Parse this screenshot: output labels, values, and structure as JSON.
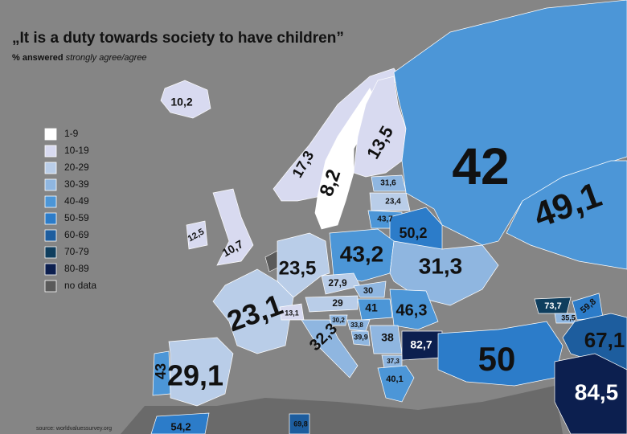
{
  "header": {
    "title": "„It is a duty towards society to have children”",
    "subtitle_prefix": "% answered",
    "subtitle_emphasis": "strongly agree/agree"
  },
  "legend": [
    {
      "label": "1-9",
      "color": "#ffffff"
    },
    {
      "label": "10-19",
      "color": "#d8daf0"
    },
    {
      "label": "20-29",
      "color": "#b9cde8"
    },
    {
      "label": "30-39",
      "color": "#8fb6e0"
    },
    {
      "label": "40-49",
      "color": "#4c96d7"
    },
    {
      "label": "50-59",
      "color": "#2c7cc9"
    },
    {
      "label": "60-69",
      "color": "#1d5d9e"
    },
    {
      "label": "70-79",
      "color": "#0f3e5e"
    },
    {
      "label": "80-89",
      "color": "#0c1f4f"
    },
    {
      "label": "no data",
      "color": "#5a5a5a"
    }
  ],
  "regions": [
    {
      "label": "10,2",
      "color": "#d8daf0"
    },
    {
      "label": "17,3",
      "color": "#d8daf0"
    },
    {
      "label": "8,2",
      "color": "#ffffff"
    },
    {
      "label": "13,5",
      "color": "#d8daf0"
    },
    {
      "label": "42",
      "color": "#4c96d7"
    },
    {
      "label": "49,1",
      "color": "#4c96d7"
    },
    {
      "label": "31,6",
      "color": "#8fb6e0"
    },
    {
      "label": "23,4",
      "color": "#b9cde8"
    },
    {
      "label": "43,7",
      "color": "#4c96d7"
    },
    {
      "label": "50,2",
      "color": "#2c7cc9"
    },
    {
      "label": "12,5",
      "color": "#d8daf0"
    },
    {
      "label": "10,7",
      "color": "#d8daf0"
    },
    {
      "label": "23,5",
      "color": "#b9cde8"
    },
    {
      "label": "43,2",
      "color": "#4c96d7"
    },
    {
      "label": "31,3",
      "color": "#8fb6e0"
    },
    {
      "label": "27,9",
      "color": "#b9cde8"
    },
    {
      "label": "30",
      "color": "#8fb6e0"
    },
    {
      "label": "29",
      "color": "#b9cde8"
    },
    {
      "label": "41",
      "color": "#4c96d7"
    },
    {
      "label": "46,3",
      "color": "#4c96d7"
    },
    {
      "label": "23,1",
      "color": "#b9cde8"
    },
    {
      "label": "13,1",
      "color": "#d8daf0"
    },
    {
      "label": "32,3",
      "color": "#8fb6e0"
    },
    {
      "label": "30,2",
      "color": "#8fb6e0"
    },
    {
      "label": "33,8",
      "color": "#8fb6e0"
    },
    {
      "label": "39,9",
      "color": "#8fb6e0"
    },
    {
      "label": "38",
      "color": "#8fb6e0"
    },
    {
      "label": "82,7",
      "color": "#0c1f4f"
    },
    {
      "label": "37,3",
      "color": "#8fb6e0"
    },
    {
      "label": "40,1",
      "color": "#4c96d7"
    },
    {
      "label": "50",
      "color": "#2c7cc9"
    },
    {
      "label": "73,7",
      "color": "#0f3e5e"
    },
    {
      "label": "59,8",
      "color": "#2c7cc9"
    },
    {
      "label": "35,5",
      "color": "#8fb6e0"
    },
    {
      "label": "67,1",
      "color": "#1d5d9e"
    },
    {
      "label": "84,5",
      "color": "#0c1f4f"
    },
    {
      "label": "43",
      "color": "#4c96d7"
    },
    {
      "label": "29,1",
      "color": "#b9cde8"
    },
    {
      "label": "54,2",
      "color": "#2c7cc9"
    },
    {
      "label": "69,8",
      "color": "#1d5d9e"
    }
  ],
  "source": "source: worldvaluessurvey.org"
}
